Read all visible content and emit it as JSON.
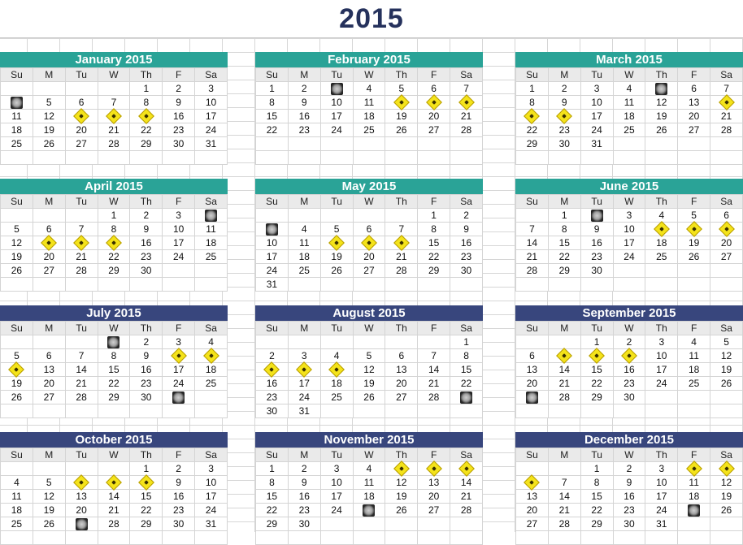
{
  "year_title": "2015",
  "weekdays": [
    "Su",
    "M",
    "Tu",
    "W",
    "Th",
    "F",
    "Sa"
  ],
  "months": [
    {
      "name": "January 2015",
      "theme": "teal",
      "rows": [
        [
          "",
          "",
          "",
          "",
          "1",
          "2",
          "3"
        ],
        [
          "~moon",
          "5",
          "6",
          "7",
          "8",
          "9",
          "10"
        ],
        [
          "11",
          "12",
          "~sign",
          "~sign",
          "~sign",
          "16",
          "17"
        ],
        [
          "18",
          "19",
          "20",
          "21",
          "22",
          "23",
          "24"
        ],
        [
          "25",
          "26",
          "27",
          "28",
          "29",
          "30",
          "31"
        ],
        [
          "",
          "",
          "",
          "",
          "",
          "",
          ""
        ]
      ]
    },
    {
      "name": "February 2015",
      "theme": "teal",
      "rows": [
        [
          "1",
          "2",
          "~moon",
          "4",
          "5",
          "6",
          "7"
        ],
        [
          "8",
          "9",
          "10",
          "11",
          "~sign",
          "~sign",
          "~sign"
        ],
        [
          "15",
          "16",
          "17",
          "18",
          "19",
          "20",
          "21"
        ],
        [
          "22",
          "23",
          "24",
          "25",
          "26",
          "27",
          "28"
        ],
        [
          "",
          "",
          "",
          "",
          "",
          "",
          ""
        ],
        [
          "",
          "",
          "",
          "",
          "",
          "",
          ""
        ]
      ]
    },
    {
      "name": "March 2015",
      "theme": "teal",
      "rows": [
        [
          "1",
          "2",
          "3",
          "4",
          "~moon",
          "6",
          "7"
        ],
        [
          "8",
          "9",
          "10",
          "11",
          "12",
          "13",
          "~sign"
        ],
        [
          "~sign",
          "~sign",
          "17",
          "18",
          "19",
          "20",
          "21"
        ],
        [
          "22",
          "23",
          "24",
          "25",
          "26",
          "27",
          "28"
        ],
        [
          "29",
          "30",
          "31",
          "",
          "",
          "",
          ""
        ],
        [
          "",
          "",
          "",
          "",
          "",
          "",
          ""
        ]
      ]
    },
    {
      "name": "April 2015",
      "theme": "teal",
      "rows": [
        [
          "",
          "",
          "",
          "1",
          "2",
          "3",
          "~moon"
        ],
        [
          "5",
          "6",
          "7",
          "8",
          "9",
          "10",
          "11"
        ],
        [
          "12",
          "~sign",
          "~sign",
          "~sign",
          "16",
          "17",
          "18"
        ],
        [
          "19",
          "20",
          "21",
          "22",
          "23",
          "24",
          "25"
        ],
        [
          "26",
          "27",
          "28",
          "29",
          "30",
          "",
          ""
        ],
        [
          "",
          "",
          "",
          "",
          "",
          "",
          ""
        ]
      ]
    },
    {
      "name": "May 2015",
      "theme": "teal",
      "rows": [
        [
          "",
          "",
          "",
          "",
          "",
          "1",
          "2"
        ],
        [
          "~moon",
          "4",
          "5",
          "6",
          "7",
          "8",
          "9"
        ],
        [
          "10",
          "11",
          "~sign",
          "~sign",
          "~sign",
          "15",
          "16"
        ],
        [
          "17",
          "18",
          "19",
          "20",
          "21",
          "22",
          "23"
        ],
        [
          "24",
          "25",
          "26",
          "27",
          "28",
          "29",
          "30"
        ],
        [
          "31",
          "",
          "",
          "",
          "",
          "",
          ""
        ]
      ]
    },
    {
      "name": "June 2015",
      "theme": "teal",
      "rows": [
        [
          "",
          "1",
          "~moon",
          "3",
          "4",
          "5",
          "6"
        ],
        [
          "7",
          "8",
          "9",
          "10",
          "~sign",
          "~sign",
          "~sign"
        ],
        [
          "14",
          "15",
          "16",
          "17",
          "18",
          "19",
          "20"
        ],
        [
          "21",
          "22",
          "23",
          "24",
          "25",
          "26",
          "27"
        ],
        [
          "28",
          "29",
          "30",
          "",
          "",
          "",
          ""
        ],
        [
          "",
          "",
          "",
          "",
          "",
          "",
          ""
        ]
      ]
    },
    {
      "name": "July 2015",
      "theme": "navy",
      "rows": [
        [
          "",
          "",
          "",
          "~moon",
          "2",
          "3",
          "4"
        ],
        [
          "5",
          "6",
          "7",
          "8",
          "9",
          "~sign",
          "~sign"
        ],
        [
          "~sign",
          "13",
          "14",
          "15",
          "16",
          "17",
          "18"
        ],
        [
          "19",
          "20",
          "21",
          "22",
          "23",
          "24",
          "25"
        ],
        [
          "26",
          "27",
          "28",
          "29",
          "30",
          "~moon",
          ""
        ],
        [
          "",
          "",
          "",
          "",
          "",
          "",
          ""
        ]
      ]
    },
    {
      "name": "August 2015",
      "theme": "navy",
      "rows": [
        [
          "",
          "",
          "",
          "",
          "",
          "",
          "1"
        ],
        [
          "2",
          "3",
          "4",
          "5",
          "6",
          "7",
          "8"
        ],
        [
          "~sign",
          "~sign",
          "~sign",
          "12",
          "13",
          "14",
          "15"
        ],
        [
          "16",
          "17",
          "18",
          "19",
          "20",
          "21",
          "22"
        ],
        [
          "23",
          "24",
          "25",
          "26",
          "27",
          "28",
          "~moon"
        ],
        [
          "30",
          "31",
          "",
          "",
          "",
          "",
          ""
        ]
      ]
    },
    {
      "name": "September 2015",
      "theme": "navy",
      "rows": [
        [
          "",
          "",
          "1",
          "2",
          "3",
          "4",
          "5"
        ],
        [
          "6",
          "~sign",
          "~sign",
          "~sign",
          "10",
          "11",
          "12"
        ],
        [
          "13",
          "14",
          "15",
          "16",
          "17",
          "18",
          "19"
        ],
        [
          "20",
          "21",
          "22",
          "23",
          "24",
          "25",
          "26"
        ],
        [
          "~moon",
          "28",
          "29",
          "30",
          "",
          "",
          ""
        ],
        [
          "",
          "",
          "",
          "",
          "",
          "",
          ""
        ]
      ]
    },
    {
      "name": "October 2015",
      "theme": "navy",
      "rows": [
        [
          "",
          "",
          "",
          "",
          "1",
          "2",
          "3"
        ],
        [
          "4",
          "5",
          "~sign",
          "~sign",
          "~sign",
          "9",
          "10"
        ],
        [
          "11",
          "12",
          "13",
          "14",
          "15",
          "16",
          "17"
        ],
        [
          "18",
          "19",
          "20",
          "21",
          "22",
          "23",
          "24"
        ],
        [
          "25",
          "26",
          "~moon",
          "28",
          "29",
          "30",
          "31"
        ],
        [
          "",
          "",
          "",
          "",
          "",
          "",
          ""
        ]
      ]
    },
    {
      "name": "November 2015",
      "theme": "navy",
      "rows": [
        [
          "1",
          "2",
          "3",
          "4",
          "~sign",
          "~sign",
          "~sign"
        ],
        [
          "8",
          "9",
          "10",
          "11",
          "12",
          "13",
          "14"
        ],
        [
          "15",
          "16",
          "17",
          "18",
          "19",
          "20",
          "21"
        ],
        [
          "22",
          "23",
          "24",
          "~moon",
          "26",
          "27",
          "28"
        ],
        [
          "29",
          "30",
          "",
          "",
          "",
          "",
          ""
        ],
        [
          "",
          "",
          "",
          "",
          "",
          "",
          ""
        ]
      ]
    },
    {
      "name": "December 2015",
      "theme": "navy",
      "rows": [
        [
          "",
          "",
          "1",
          "2",
          "3",
          "~sign",
          "~sign"
        ],
        [
          "~sign",
          "7",
          "8",
          "9",
          "10",
          "11",
          "12"
        ],
        [
          "13",
          "14",
          "15",
          "16",
          "17",
          "18",
          "19"
        ],
        [
          "20",
          "21",
          "22",
          "23",
          "24",
          "~moon",
          "26"
        ],
        [
          "27",
          "28",
          "29",
          "30",
          "31",
          "",
          ""
        ],
        [
          "",
          "",
          "",
          "",
          "",
          "",
          ""
        ]
      ]
    }
  ],
  "icons": {
    "moon": "full-moon-icon",
    "sign": "road-sign-icon"
  }
}
